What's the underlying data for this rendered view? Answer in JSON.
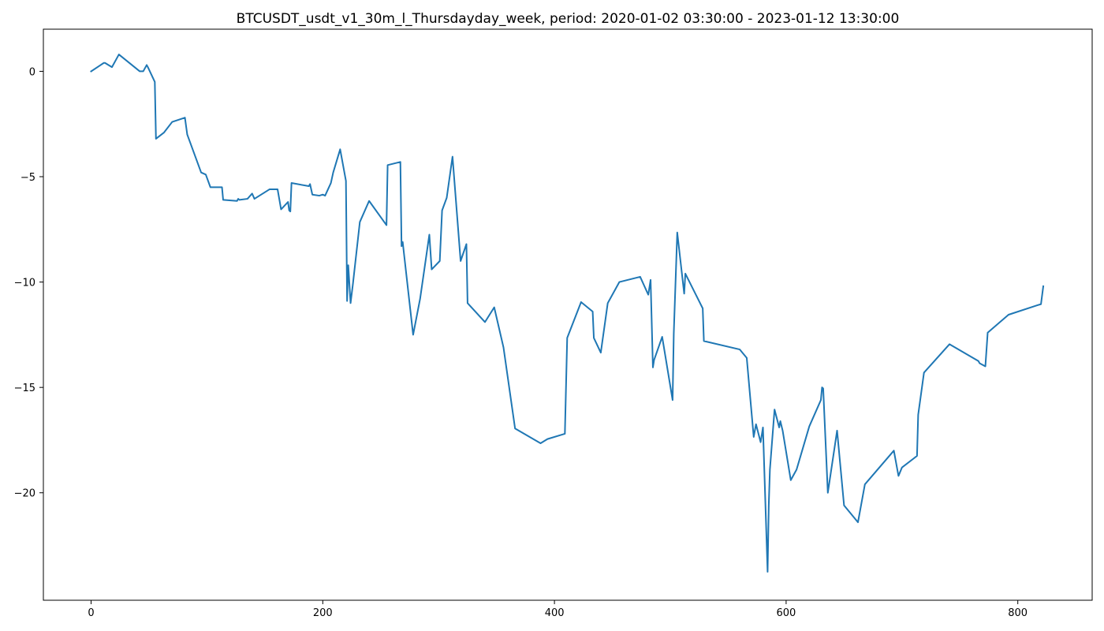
{
  "chart_data": {
    "type": "line",
    "title": "BTCUSDT_usdt_v1_30m_l_Thursdayday_week, period: 2020-01-02 03:30:00 - 2023-01-12 13:30:00",
    "xlabel": "",
    "ylabel": "",
    "xlim": [
      -41.2,
      864.2
    ],
    "ylim": [
      -25.1,
      2.0
    ],
    "xticks": [
      0,
      200,
      400,
      600,
      800
    ],
    "yticks": [
      0,
      -5,
      -10,
      -15,
      -20
    ],
    "xtick_labels": [
      "0",
      "200",
      "400",
      "600",
      "800"
    ],
    "ytick_labels": [
      "0",
      "−5",
      "−10",
      "−15",
      "−20"
    ],
    "grid": false,
    "color": "#1f77b4",
    "series": [
      {
        "x": [
          0,
          11,
          12,
          18,
          24,
          42,
          45,
          48,
          49,
          55,
          56,
          63,
          70,
          81,
          83,
          95,
          99,
          103,
          113,
          114,
          126,
          127,
          128,
          135,
          139,
          141,
          154,
          161,
          164,
          170,
          171,
          172,
          173,
          188,
          189,
          191,
          197,
          200,
          202,
          207,
          209,
          215,
          220,
          221,
          222,
          224,
          226,
          232,
          240,
          255,
          256,
          267,
          268,
          269,
          270,
          278,
          284,
          292,
          294,
          301,
          303,
          307,
          312,
          319,
          324,
          325,
          340,
          348,
          356,
          366,
          388,
          394,
          409,
          411,
          423,
          433,
          434,
          440,
          446,
          456,
          474,
          481,
          483,
          485,
          486,
          493,
          502,
          503,
          506,
          512,
          513,
          528,
          529,
          560,
          566,
          572,
          574,
          578,
          580,
          584,
          585,
          586,
          590,
          594,
          595,
          597,
          604,
          609,
          620,
          630,
          631,
          632,
          636,
          644,
          650,
          662,
          668,
          693,
          697,
          700,
          713,
          714,
          719,
          741,
          766,
          767,
          772,
          774,
          792,
          817,
          820,
          822
        ],
        "y": [
          0.0,
          0.4,
          0.4,
          0.2,
          0.8,
          0.0,
          0.0,
          0.3,
          0.2,
          -0.5,
          -3.2,
          -2.9,
          -2.4,
          -2.2,
          -3.0,
          -4.8,
          -4.9,
          -5.5,
          -5.5,
          -6.1,
          -6.15,
          -6.05,
          -6.1,
          -6.05,
          -5.8,
          -6.05,
          -5.6,
          -5.6,
          -6.55,
          -6.2,
          -6.6,
          -6.65,
          -5.3,
          -5.45,
          -5.35,
          -5.85,
          -5.9,
          -5.85,
          -5.9,
          -5.3,
          -4.8,
          -3.7,
          -5.2,
          -10.9,
          -9.2,
          -11.0,
          -10.1,
          -7.15,
          -6.15,
          -7.3,
          -4.45,
          -4.3,
          -8.3,
          -8.1,
          -8.6,
          -12.5,
          -10.8,
          -7.75,
          -9.4,
          -9.0,
          -6.6,
          -6.0,
          -4.05,
          -9.0,
          -8.2,
          -11.0,
          -11.9,
          -11.2,
          -13.1,
          -16.95,
          -17.65,
          -17.45,
          -17.2,
          -12.65,
          -10.95,
          -11.4,
          -12.65,
          -13.35,
          -11.0,
          -10.0,
          -9.75,
          -10.6,
          -9.9,
          -14.05,
          -13.7,
          -12.6,
          -15.6,
          -12.45,
          -7.65,
          -10.55,
          -9.6,
          -11.25,
          -12.8,
          -13.2,
          -13.6,
          -17.35,
          -16.75,
          -17.6,
          -16.9,
          -23.75,
          -20.6,
          -18.9,
          -16.05,
          -16.9,
          -16.6,
          -17.05,
          -19.4,
          -18.9,
          -16.85,
          -15.6,
          -15.0,
          -15.05,
          -20.0,
          -17.05,
          -20.6,
          -21.4,
          -19.6,
          -18.0,
          -19.2,
          -18.8,
          -18.25,
          -16.3,
          -14.3,
          -12.95,
          -13.75,
          -13.85,
          -14.0,
          -12.4,
          -11.55,
          -11.1,
          -11.05,
          -10.2
        ]
      }
    ]
  }
}
